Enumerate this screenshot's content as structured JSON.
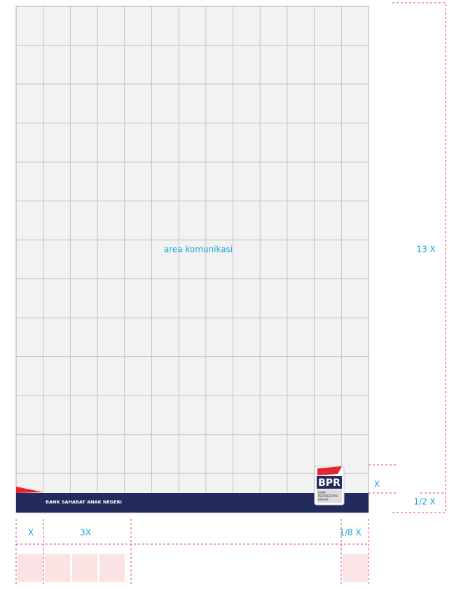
{
  "area_label": "area komunikasi",
  "tagline": "BANK SAHABAT ANAK NEGERI",
  "logo": {
    "name": "BPR",
    "subtitle": [
      "BANK",
      "PERKREDITAN",
      "RAKYAT"
    ]
  },
  "dimensions": {
    "height": "13 X",
    "logo_height": "X",
    "bar_height": "1/2 X",
    "margin": "X",
    "tagline_width": "3X",
    "logo_margin": "1/8 X"
  }
}
